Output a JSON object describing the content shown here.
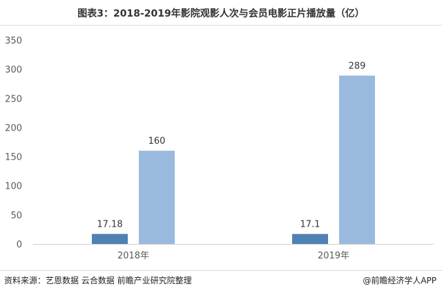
{
  "title": "图表3：2018-2019年影院观影人次与会员电影正片播放量（亿）",
  "source": "资料来源：艺恩数据 云合数据 前瞻产业研究院整理",
  "brand": "@前瞻经济学人APP",
  "colors": {
    "dark_bar": "#4e81b4",
    "light_bar": "#9ab9df",
    "axis_text": "#595959"
  },
  "chart_data": {
    "type": "bar",
    "categories": [
      "2018年",
      "2019年"
    ],
    "series": [
      {
        "values": [
          17.18,
          17.1
        ]
      },
      {
        "values": [
          160,
          289
        ]
      }
    ],
    "data_labels": [
      [
        "17.18",
        "160"
      ],
      [
        "17.1",
        "289"
      ]
    ],
    "ylim": [
      0,
      350
    ],
    "yticks": [
      0,
      50,
      100,
      150,
      200,
      250,
      300,
      350
    ],
    "grid": false
  }
}
